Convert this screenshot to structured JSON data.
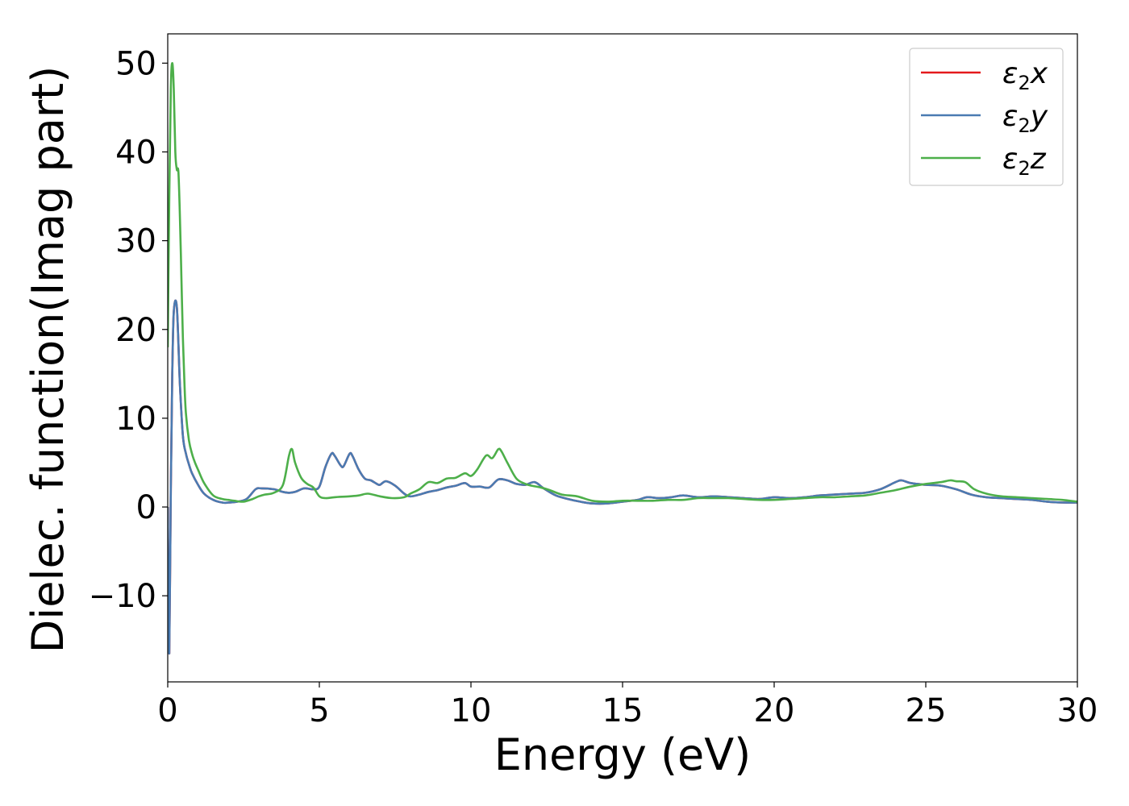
{
  "chart_data": {
    "type": "line",
    "xlabel": "Energy (eV)",
    "ylabel": "Dielec. function(Imag part)",
    "xlim": [
      0,
      30
    ],
    "ylim": [
      -19.7,
      53.3
    ],
    "xticks": [
      0,
      5,
      10,
      15,
      20,
      25,
      30
    ],
    "xtick_labels": [
      "0",
      "5",
      "10",
      "15",
      "20",
      "25",
      "30"
    ],
    "yticks": [
      -10,
      0,
      10,
      20,
      30,
      40,
      50
    ],
    "ytick_labels": [
      "−10",
      "0",
      "10",
      "20",
      "30",
      "40",
      "50"
    ],
    "grid": false,
    "legend_position": "top-right",
    "series": [
      {
        "name": "ε₂x",
        "legend": {
          "base": "ε",
          "sub": "2",
          "axis": "x"
        },
        "color": "#e41a1c",
        "x": [
          0.0,
          0.05,
          0.1,
          0.15,
          0.2,
          0.3,
          0.4,
          0.5,
          0.6,
          0.7,
          0.8,
          1.0,
          1.2,
          1.5,
          1.8,
          2.0,
          2.3,
          2.6,
          2.9,
          3.1,
          3.5,
          3.8,
          4.0,
          4.2,
          4.5,
          4.8,
          5.0,
          5.2,
          5.4,
          5.5,
          5.7,
          5.8,
          6.0,
          6.1,
          6.3,
          6.5,
          6.7,
          6.9,
          7.0,
          7.2,
          7.5,
          7.8,
          8.0,
          8.3,
          8.6,
          8.9,
          9.2,
          9.5,
          9.8,
          10.0,
          10.3,
          10.6,
          10.9,
          11.2,
          11.5,
          11.8,
          12.1,
          12.4,
          12.8,
          13.2,
          13.6,
          14.0,
          14.5,
          15.0,
          15.5,
          15.8,
          16.2,
          16.6,
          17.0,
          17.5,
          18.0,
          18.5,
          19.0,
          19.5,
          20.0,
          20.5,
          21.0,
          21.5,
          22.0,
          22.5,
          23.0,
          23.5,
          24.0,
          24.2,
          24.5,
          25.0,
          25.5,
          26.0,
          26.5,
          27.0,
          27.5,
          28.0,
          28.5,
          29.0,
          29.5,
          30.0
        ],
        "y": [
          0,
          -16.5,
          2,
          15,
          22,
          22.5,
          14,
          8,
          6,
          4.8,
          3.8,
          2.5,
          1.5,
          0.8,
          0.5,
          0.5,
          0.6,
          0.9,
          2.0,
          2.1,
          2.0,
          1.7,
          1.6,
          1.7,
          2.1,
          2.0,
          2.3,
          4.5,
          6.0,
          5.8,
          4.7,
          4.6,
          6.0,
          5.7,
          4.2,
          3.2,
          3.0,
          2.6,
          2.5,
          2.9,
          2.4,
          1.5,
          1.2,
          1.4,
          1.7,
          1.9,
          2.2,
          2.4,
          2.7,
          2.3,
          2.3,
          2.2,
          3.1,
          3.0,
          2.6,
          2.5,
          2.8,
          2.1,
          1.3,
          0.9,
          0.6,
          0.4,
          0.4,
          0.6,
          0.8,
          1.1,
          1.0,
          1.1,
          1.3,
          1.1,
          1.2,
          1.1,
          1.0,
          0.9,
          1.1,
          1.0,
          1.1,
          1.3,
          1.4,
          1.5,
          1.6,
          2.0,
          2.8,
          3.0,
          2.7,
          2.5,
          2.4,
          2.0,
          1.4,
          1.1,
          1.0,
          0.9,
          0.8,
          0.6,
          0.5,
          0.5
        ]
      },
      {
        "name": "ε₂y",
        "legend": {
          "base": "ε",
          "sub": "2",
          "axis": "y"
        },
        "color": "#4a7bb2",
        "x": [
          0.0,
          0.05,
          0.1,
          0.15,
          0.2,
          0.3,
          0.4,
          0.5,
          0.6,
          0.7,
          0.8,
          1.0,
          1.2,
          1.5,
          1.8,
          2.0,
          2.3,
          2.6,
          2.9,
          3.1,
          3.5,
          3.8,
          4.0,
          4.2,
          4.5,
          4.8,
          5.0,
          5.2,
          5.4,
          5.5,
          5.7,
          5.8,
          6.0,
          6.1,
          6.3,
          6.5,
          6.7,
          6.9,
          7.0,
          7.2,
          7.5,
          7.8,
          8.0,
          8.3,
          8.6,
          8.9,
          9.2,
          9.5,
          9.8,
          10.0,
          10.3,
          10.6,
          10.9,
          11.2,
          11.5,
          11.8,
          12.1,
          12.4,
          12.8,
          13.2,
          13.6,
          14.0,
          14.5,
          15.0,
          15.5,
          15.8,
          16.2,
          16.6,
          17.0,
          17.5,
          18.0,
          18.5,
          19.0,
          19.5,
          20.0,
          20.5,
          21.0,
          21.5,
          22.0,
          22.5,
          23.0,
          23.5,
          24.0,
          24.2,
          24.5,
          25.0,
          25.5,
          26.0,
          26.5,
          27.0,
          27.5,
          28.0,
          28.5,
          29.0,
          29.5,
          30.0
        ],
        "y": [
          0,
          -16.5,
          2,
          15,
          22,
          22.5,
          14,
          8,
          6,
          4.8,
          3.8,
          2.5,
          1.5,
          0.8,
          0.5,
          0.5,
          0.6,
          0.9,
          2.0,
          2.1,
          2.0,
          1.7,
          1.6,
          1.7,
          2.1,
          2.0,
          2.3,
          4.5,
          6.0,
          5.8,
          4.7,
          4.6,
          6.0,
          5.7,
          4.2,
          3.2,
          3.0,
          2.6,
          2.5,
          2.9,
          2.4,
          1.5,
          1.2,
          1.4,
          1.7,
          1.9,
          2.2,
          2.4,
          2.7,
          2.3,
          2.3,
          2.2,
          3.1,
          3.0,
          2.6,
          2.5,
          2.8,
          2.1,
          1.3,
          0.9,
          0.6,
          0.4,
          0.4,
          0.6,
          0.8,
          1.1,
          1.0,
          1.1,
          1.3,
          1.1,
          1.2,
          1.1,
          1.0,
          0.9,
          1.1,
          1.0,
          1.1,
          1.3,
          1.4,
          1.5,
          1.6,
          2.0,
          2.8,
          3.0,
          2.7,
          2.5,
          2.4,
          2.0,
          1.4,
          1.1,
          1.0,
          0.9,
          0.8,
          0.6,
          0.5,
          0.5
        ]
      },
      {
        "name": "ε₂z",
        "legend": {
          "base": "ε",
          "sub": "2",
          "axis": "z"
        },
        "color": "#4daf4a",
        "x": [
          0.0,
          0.05,
          0.1,
          0.15,
          0.2,
          0.25,
          0.3,
          0.35,
          0.4,
          0.45,
          0.5,
          0.55,
          0.6,
          0.7,
          0.8,
          0.9,
          1.0,
          1.2,
          1.5,
          1.8,
          2.0,
          2.2,
          2.5,
          2.8,
          3.0,
          3.2,
          3.5,
          3.8,
          4.0,
          4.1,
          4.2,
          4.4,
          4.6,
          4.8,
          5.0,
          5.2,
          5.5,
          6.0,
          6.3,
          6.6,
          7.0,
          7.4,
          7.8,
          8.0,
          8.3,
          8.6,
          8.9,
          9.2,
          9.5,
          9.8,
          10.0,
          10.2,
          10.5,
          10.7,
          10.9,
          11.0,
          11.2,
          11.5,
          11.8,
          12.0,
          12.3,
          12.6,
          13.0,
          13.5,
          14.0,
          14.5,
          15.0,
          15.5,
          16.0,
          16.5,
          17.0,
          17.5,
          18.0,
          18.5,
          19.0,
          19.5,
          20.0,
          20.5,
          21.0,
          21.5,
          22.0,
          22.5,
          23.0,
          23.5,
          24.0,
          24.5,
          25.0,
          25.5,
          25.8,
          26.0,
          26.3,
          26.6,
          27.0,
          27.5,
          28.0,
          28.5,
          29.0,
          29.5,
          30.0
        ],
        "y": [
          18,
          35,
          47,
          50,
          47,
          40,
          38,
          37.8,
          33,
          26,
          19,
          14,
          10.5,
          7.5,
          6,
          5,
          4.2,
          2.7,
          1.3,
          0.9,
          0.8,
          0.7,
          0.6,
          0.9,
          1.2,
          1.4,
          1.6,
          2.5,
          5.8,
          6.5,
          5.0,
          3.3,
          2.6,
          2.2,
          1.2,
          1.0,
          1.1,
          1.2,
          1.3,
          1.5,
          1.2,
          1.0,
          1.1,
          1.5,
          2.0,
          2.8,
          2.7,
          3.2,
          3.3,
          3.8,
          3.5,
          4.2,
          5.8,
          5.5,
          6.5,
          6.3,
          5.0,
          3.2,
          2.6,
          2.4,
          2.2,
          1.9,
          1.4,
          1.2,
          0.7,
          0.6,
          0.7,
          0.7,
          0.7,
          0.8,
          0.8,
          1.0,
          1.0,
          1.0,
          0.9,
          0.8,
          0.8,
          0.9,
          1.0,
          1.1,
          1.1,
          1.2,
          1.3,
          1.6,
          1.9,
          2.3,
          2.6,
          2.8,
          3.0,
          2.9,
          2.8,
          2.0,
          1.5,
          1.2,
          1.1,
          1.0,
          0.9,
          0.8,
          0.6
        ]
      }
    ]
  }
}
